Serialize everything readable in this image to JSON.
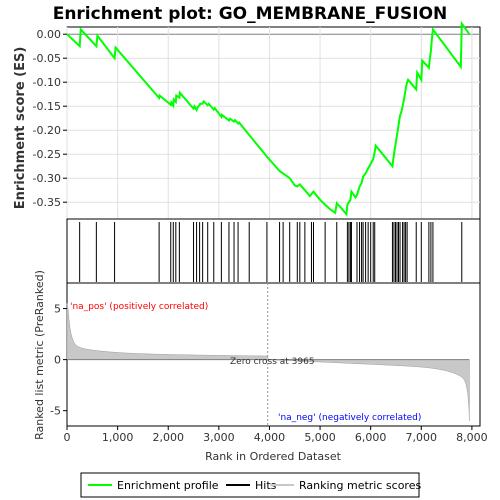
{
  "chart_data": {
    "type": "line",
    "title": "Enrichment plot: GO_MEMBRANE_FUSION",
    "es_panel": {
      "ylabel": "Enrichment score (ES)",
      "yticks": [
        "0.00",
        "-0.05",
        "-0.10",
        "-0.15",
        "-0.20",
        "-0.25",
        "-0.30",
        "-0.35"
      ],
      "ylim": [
        -0.385,
        0.015
      ],
      "series": [
        {
          "name": "Enrichment profile",
          "color": "#00ff00",
          "x": [
            0,
            250,
            270,
            580,
            600,
            940,
            960,
            1820,
            1830,
            2050,
            2060,
            2100,
            2110,
            2150,
            2160,
            2220,
            2230,
            2500,
            2520,
            2560,
            2580,
            2620,
            2630,
            2680,
            2700,
            2780,
            2800,
            2900,
            2920,
            3050,
            3060,
            3200,
            3220,
            3300,
            3320,
            3380,
            3400,
            3600,
            3950,
            4200,
            4400,
            4500,
            4550,
            4600,
            4700,
            4800,
            4830,
            4870,
            4900,
            5000,
            5100,
            5200,
            5300,
            5330,
            5400,
            5520,
            5540,
            5570,
            5600,
            5620,
            5700,
            5730,
            5780,
            5820,
            5850,
            5900,
            5950,
            6000,
            6050,
            6080,
            6100,
            6430,
            6460,
            6490,
            6520,
            6550,
            6580,
            6610,
            6630,
            6660,
            6690,
            6720,
            6740,
            6900,
            6920,
            7000,
            7020,
            7150,
            7170,
            7190,
            7210,
            7230,
            7780,
            7800,
            7950
          ],
          "y": [
            0.0,
            -0.025,
            0.01,
            -0.025,
            -0.003,
            -0.05,
            -0.028,
            -0.133,
            -0.128,
            -0.147,
            -0.142,
            -0.149,
            -0.136,
            -0.141,
            -0.128,
            -0.132,
            -0.122,
            -0.155,
            -0.15,
            -0.158,
            -0.152,
            -0.148,
            -0.145,
            -0.145,
            -0.14,
            -0.148,
            -0.145,
            -0.157,
            -0.154,
            -0.172,
            -0.168,
            -0.18,
            -0.176,
            -0.182,
            -0.179,
            -0.186,
            -0.184,
            -0.21,
            -0.255,
            -0.285,
            -0.3,
            -0.315,
            -0.317,
            -0.313,
            -0.325,
            -0.337,
            -0.333,
            -0.328,
            -0.332,
            -0.345,
            -0.355,
            -0.365,
            -0.372,
            -0.352,
            -0.36,
            -0.375,
            -0.355,
            -0.35,
            -0.345,
            -0.328,
            -0.34,
            -0.335,
            -0.318,
            -0.31,
            -0.297,
            -0.29,
            -0.28,
            -0.27,
            -0.26,
            -0.245,
            -0.232,
            -0.275,
            -0.25,
            -0.23,
            -0.21,
            -0.19,
            -0.17,
            -0.16,
            -0.15,
            -0.135,
            -0.115,
            -0.1,
            -0.095,
            -0.115,
            -0.08,
            -0.095,
            -0.055,
            -0.07,
            -0.05,
            -0.035,
            -0.01,
            0.01,
            -0.068,
            0.022,
            0.0
          ]
        }
      ],
      "hits_x": [
        250,
        580,
        940,
        1820,
        2050,
        2100,
        2150,
        2220,
        2500,
        2560,
        2620,
        2680,
        2780,
        2900,
        3050,
        3200,
        3300,
        3380,
        3600,
        3950,
        4200,
        4270,
        4400,
        4550,
        4600,
        4700,
        4830,
        4870,
        5100,
        5330,
        5540,
        5570,
        5600,
        5620,
        5730,
        5780,
        5820,
        5850,
        5900,
        5950,
        6000,
        6050,
        6080,
        6430,
        6460,
        6490,
        6520,
        6550,
        6580,
        6630,
        6660,
        6690,
        6720,
        6900,
        7000,
        7150,
        7190,
        7230,
        7800
      ]
    },
    "metric_panel": {
      "ylabel": "Ranked list metric (PreRanked)",
      "yticks": [
        "5",
        "0",
        "-5"
      ],
      "ylim": [
        -6.5,
        7.5
      ],
      "pos_label": "'na_pos' (positively correlated)",
      "neg_label": "'na_neg' (negatively correlated)",
      "zero_cross_label": "Zero cross at 3965",
      "zero_cross": 3965,
      "fill_color": "#c8c8c8"
    },
    "x_axis": {
      "label": "Rank in Ordered Dataset",
      "ticks": [
        "0",
        "1,000",
        "2,000",
        "3,000",
        "4,000",
        "5,000",
        "6,000",
        "7,000",
        "8,000"
      ],
      "tick_values": [
        0,
        1000,
        2000,
        3000,
        4000,
        5000,
        6000,
        7000,
        8000
      ],
      "xlim": [
        0,
        8160
      ],
      "n_genes": 7950
    },
    "legend": {
      "placement": "bottom",
      "items": [
        {
          "label": "Enrichment profile",
          "color": "#00ff00"
        },
        {
          "label": "Hits",
          "color": "#000000"
        },
        {
          "label": "Ranking metric scores",
          "color": "#c8c8c8"
        }
      ]
    },
    "colors": {
      "pos_text": "#ff0000",
      "neg_text": "#0000ff",
      "grid": "#e0e0e0",
      "zero_line": "#808080"
    }
  }
}
